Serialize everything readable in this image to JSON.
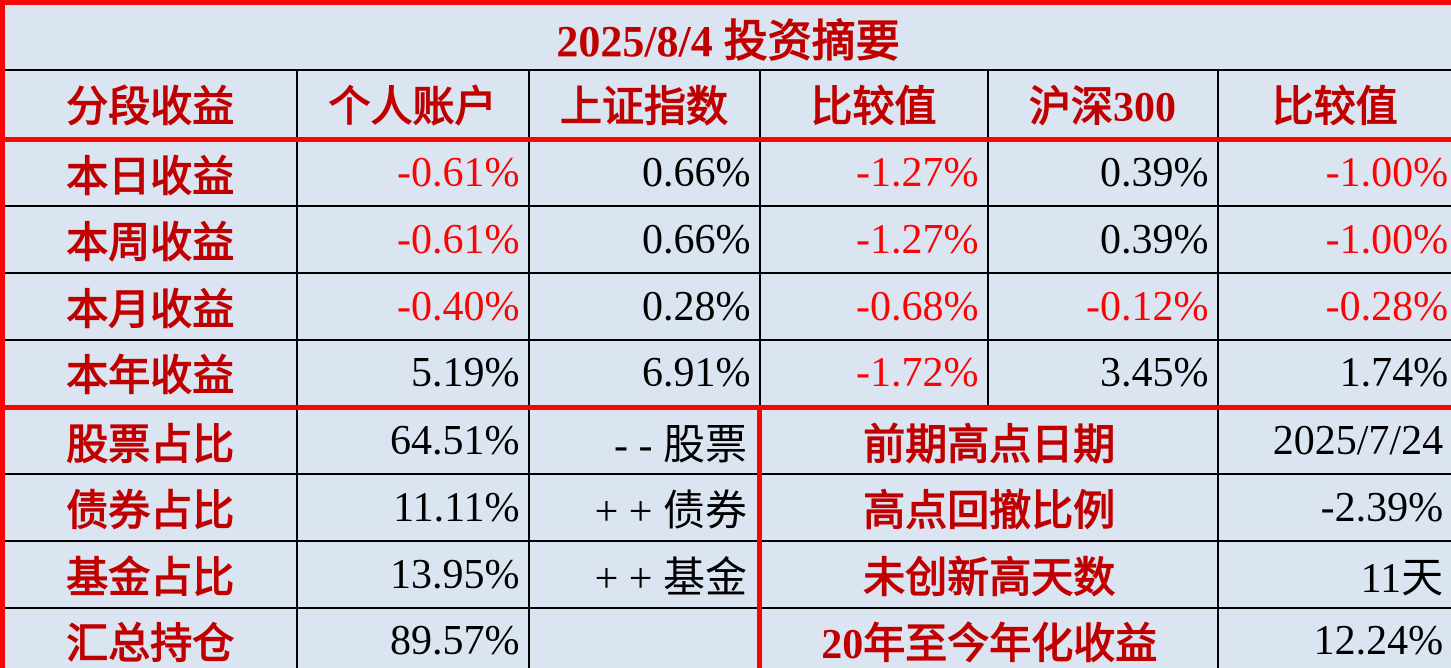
{
  "title": "2025/8/4 投资摘要",
  "colors": {
    "background": "#dbe5f1",
    "label_red": "#c00000",
    "negative_red": "#fa0505",
    "value_black": "#000000",
    "grid_line_black": "#000000",
    "border_red": "#f90505"
  },
  "header": [
    "分段收益",
    "个人账户",
    "上证指数",
    "比较值",
    "沪深300",
    "比较值"
  ],
  "performance": {
    "rows": [
      {
        "label": "本日收益",
        "values": [
          "-0.61%",
          "0.66%",
          "-1.27%",
          "0.39%",
          "-1.00%"
        ]
      },
      {
        "label": "本周收益",
        "values": [
          "-0.61%",
          "0.66%",
          "-1.27%",
          "0.39%",
          "-1.00%"
        ]
      },
      {
        "label": "本月收益",
        "values": [
          "-0.40%",
          "0.28%",
          "-0.68%",
          "-0.12%",
          "-0.28%"
        ]
      },
      {
        "label": "本年收益",
        "values": [
          "5.19%",
          "6.91%",
          "-1.72%",
          "3.45%",
          "1.74%"
        ]
      }
    ]
  },
  "allocation": {
    "rows": [
      {
        "label": "股票占比",
        "value": "64.51%",
        "note": "- - 股票"
      },
      {
        "label": "债券占比",
        "value": "11.11%",
        "note": "+ + 债券"
      },
      {
        "label": "基金占比",
        "value": "13.95%",
        "note": "+ + 基金"
      },
      {
        "label": "汇总持仓",
        "value": "89.57%",
        "note": ""
      }
    ]
  },
  "summary": {
    "rows": [
      {
        "label": "前期高点日期",
        "value": "2025/7/24"
      },
      {
        "label": "高点回撤比例",
        "value": "-2.39%"
      },
      {
        "label": "未创新高天数",
        "value": "11天"
      },
      {
        "label": "20年至今年化收益",
        "value": "12.24%"
      }
    ]
  },
  "chart_data": {
    "type": "table",
    "title": "2025/8/4 投资摘要",
    "columns": [
      "分段收益",
      "个人账户",
      "上证指数",
      "比较值",
      "沪深300",
      "比较值"
    ],
    "rows": [
      [
        "本日收益",
        "-0.61%",
        "0.66%",
        "-1.27%",
        "0.39%",
        "-1.00%"
      ],
      [
        "本周收益",
        "-0.61%",
        "0.66%",
        "-1.27%",
        "0.39%",
        "-1.00%"
      ],
      [
        "本月收益",
        "-0.40%",
        "0.28%",
        "-0.68%",
        "-0.12%",
        "-0.28%"
      ],
      [
        "本年收益",
        "5.19%",
        "6.91%",
        "-1.72%",
        "3.45%",
        "1.74%"
      ]
    ],
    "allocation_rows": [
      [
        "股票占比",
        "64.51%",
        "- - 股票"
      ],
      [
        "债券占比",
        "11.11%",
        "+ + 债券"
      ],
      [
        "基金占比",
        "13.95%",
        "+ + 基金"
      ],
      [
        "汇总持仓",
        "89.57%",
        ""
      ]
    ],
    "summary_rows": [
      [
        "前期高点日期",
        "2025/7/24"
      ],
      [
        "高点回撤比例",
        "-2.39%"
      ],
      [
        "未创新高天数",
        "11天"
      ],
      [
        "20年至今年化收益",
        "12.24%"
      ]
    ],
    "notes": "负收益数值以亮红色显示，标签与表格分隔线为红色，数据网格线为黑色"
  }
}
